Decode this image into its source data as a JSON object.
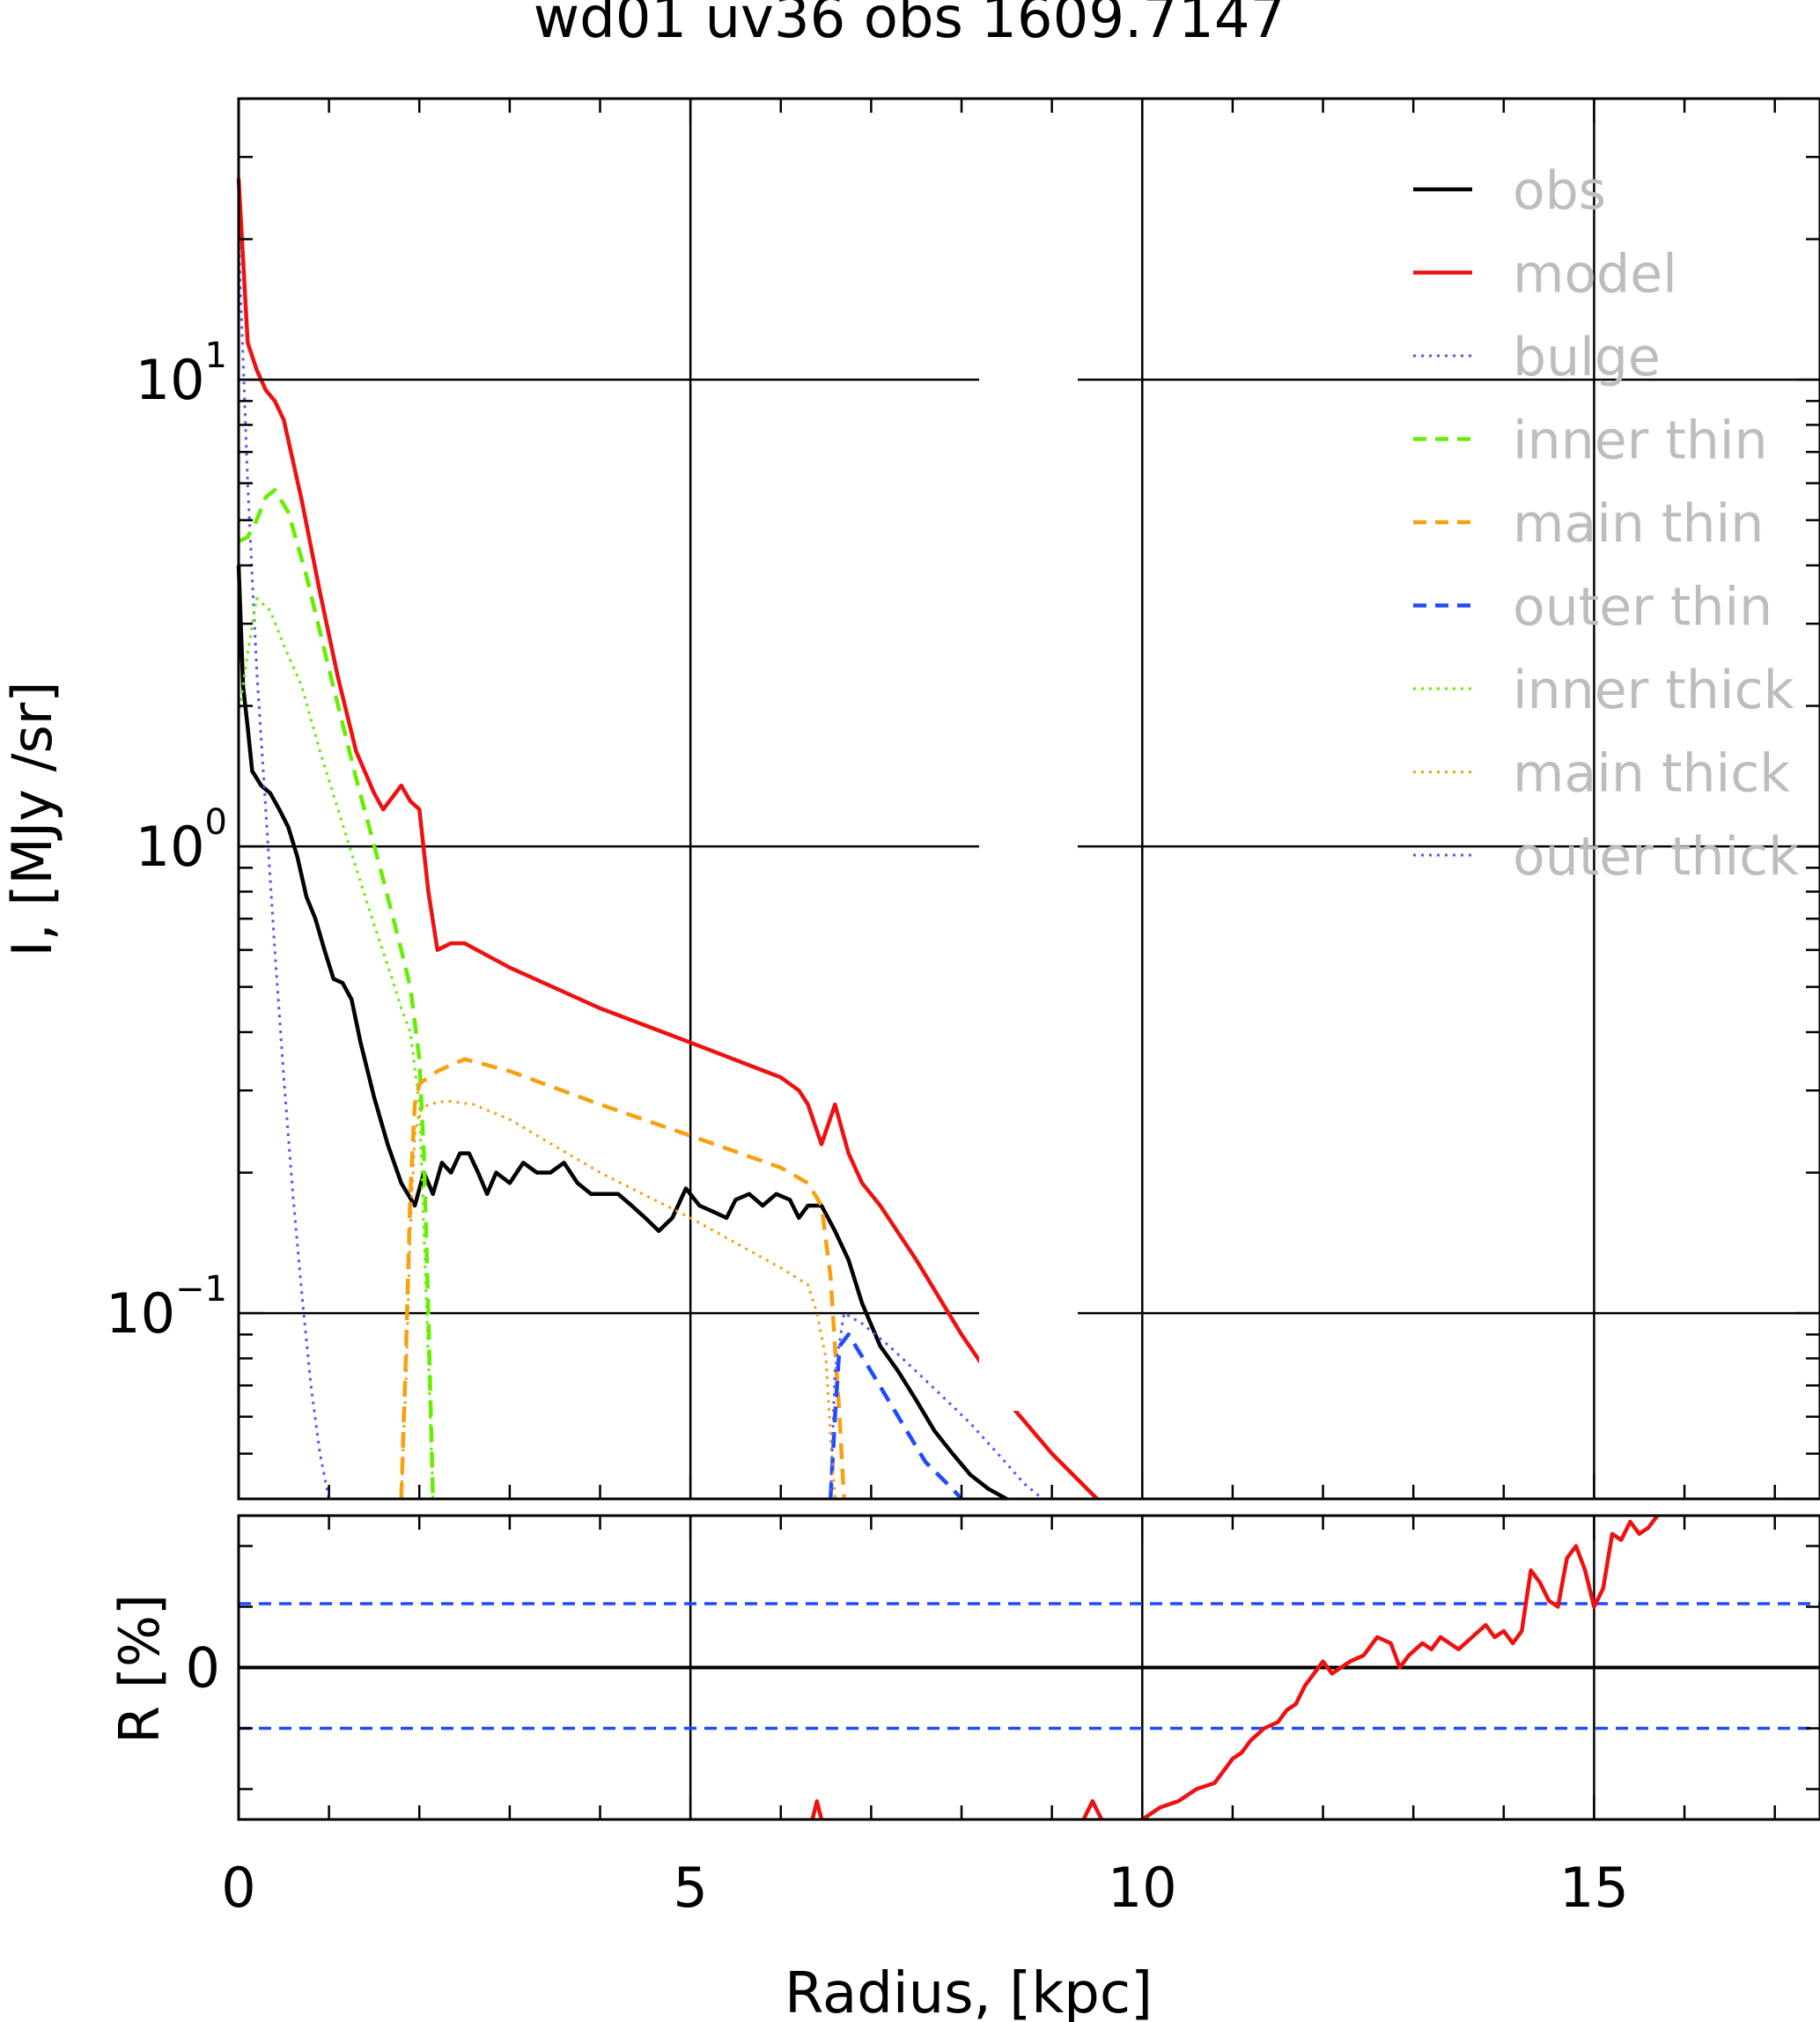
{
  "chart_data": {
    "type": "line",
    "title": "wd01 uv36 obs 1609.7147",
    "xlabel": "Radius, [kpc]",
    "xlim": [
      0,
      17.5
    ],
    "x_ticks": [
      0,
      5,
      10,
      15
    ],
    "x_tick_labels": [
      "0",
      "5",
      "10",
      "15"
    ],
    "top_panel": {
      "ylabel": "I, [MJy /sr]",
      "yscale": "log",
      "ylim": [
        0.04,
        40
      ],
      "y_tick_labels": [
        {
          "value": 10,
          "base": "10",
          "exp": "1"
        },
        {
          "value": 1,
          "base": "10",
          "exp": "0"
        },
        {
          "value": 0.1,
          "base": "10",
          "exp": "−1"
        }
      ],
      "grid": true,
      "legend_position": "top-right",
      "series": [
        {
          "name": "obs",
          "color": "#000000",
          "dash": "solid",
          "x": [
            0,
            0.05,
            0.1,
            0.15,
            0.25,
            0.35,
            0.45,
            0.55,
            0.65,
            0.75,
            0.85,
            0.95,
            1.05,
            1.15,
            1.25,
            1.35,
            1.5,
            1.65,
            1.8,
            1.95,
            2.05,
            2.15,
            2.25,
            2.35,
            2.45,
            2.55,
            2.65,
            2.75,
            2.85,
            3.0,
            3.15,
            3.3,
            3.45,
            3.6,
            3.75,
            3.9,
            4.05,
            4.2,
            4.35,
            4.5,
            4.65,
            4.8,
            4.95,
            5.1,
            5.25,
            5.4,
            5.5,
            5.65,
            5.8,
            5.95,
            6.1,
            6.2,
            6.3,
            6.45,
            6.6,
            6.75,
            6.9,
            7.1,
            7.3,
            7.5,
            7.7,
            7.9,
            8.1,
            8.3,
            8.5
          ],
          "y": [
            4.0,
            2.2,
            1.8,
            1.45,
            1.35,
            1.3,
            1.2,
            1.1,
            0.95,
            0.78,
            0.7,
            0.6,
            0.52,
            0.51,
            0.47,
            0.38,
            0.29,
            0.23,
            0.19,
            0.17,
            0.2,
            0.18,
            0.21,
            0.2,
            0.22,
            0.22,
            0.2,
            0.18,
            0.2,
            0.19,
            0.21,
            0.2,
            0.2,
            0.21,
            0.19,
            0.18,
            0.18,
            0.18,
            0.17,
            0.16,
            0.15,
            0.16,
            0.185,
            0.17,
            0.165,
            0.16,
            0.175,
            0.18,
            0.17,
            0.18,
            0.175,
            0.16,
            0.17,
            0.17,
            0.15,
            0.13,
            0.105,
            0.085,
            0.075,
            0.065,
            0.056,
            0.05,
            0.045,
            0.042,
            0.04
          ]
        },
        {
          "name": "model",
          "color": "#ee1111",
          "dash": "solid",
          "x": [
            0,
            0.1,
            0.2,
            0.3,
            0.4,
            0.5,
            0.7,
            0.9,
            1.1,
            1.3,
            1.5,
            1.6,
            1.8,
            1.9,
            2.0,
            2.1,
            2.2,
            2.35,
            2.5,
            3.0,
            4.0,
            5.0,
            6.0,
            6.2,
            6.3,
            6.45,
            6.6,
            6.75,
            6.9,
            7.1,
            7.5,
            8.0,
            8.5,
            9.0,
            9.5
          ],
          "y": [
            27,
            12,
            10.5,
            9.5,
            9.0,
            8.2,
            5.5,
            3.5,
            2.3,
            1.6,
            1.3,
            1.2,
            1.35,
            1.25,
            1.2,
            0.8,
            0.6,
            0.62,
            0.62,
            0.55,
            0.45,
            0.38,
            0.32,
            0.3,
            0.28,
            0.23,
            0.28,
            0.22,
            0.19,
            0.17,
            0.13,
            0.09,
            0.065,
            0.05,
            0.04
          ]
        },
        {
          "name": "bulge",
          "color": "#5555ff",
          "dash": "dotted",
          "x": [
            0,
            0.1,
            0.2,
            0.3,
            0.4,
            0.5,
            0.6,
            0.7,
            0.8,
            0.9,
            1.0
          ],
          "y": [
            20,
            6,
            2.4,
            1.2,
            0.6,
            0.32,
            0.18,
            0.11,
            0.07,
            0.05,
            0.04
          ]
        },
        {
          "name": "inner thin",
          "color": "#66ee00",
          "dash": "dashed",
          "x": [
            0,
            0.1,
            0.2,
            0.3,
            0.4,
            0.55,
            0.75,
            1.0,
            1.3,
            1.6,
            1.8,
            1.9,
            2.0,
            2.05,
            2.1,
            2.15
          ],
          "y": [
            4.5,
            4.6,
            5.0,
            5.6,
            5.8,
            5.2,
            3.8,
            2.4,
            1.4,
            0.85,
            0.6,
            0.5,
            0.35,
            0.22,
            0.1,
            0.04
          ]
        },
        {
          "name": "main thin",
          "color": "#f7a010",
          "dash": "dashed",
          "x": [
            1.8,
            1.85,
            1.9,
            1.95,
            2.0,
            2.2,
            2.5,
            3.0,
            4.0,
            5.0,
            6.0,
            6.3,
            6.45,
            6.55,
            6.65,
            6.7
          ],
          "y": [
            0.04,
            0.08,
            0.18,
            0.28,
            0.31,
            0.33,
            0.35,
            0.33,
            0.28,
            0.24,
            0.205,
            0.19,
            0.17,
            0.12,
            0.06,
            0.04
          ]
        },
        {
          "name": "outer thin",
          "color": "#1e4bff",
          "dash": "dashed",
          "x": [
            6.55,
            6.6,
            6.65,
            6.75,
            7.0,
            7.3,
            7.6,
            7.9,
            8.0
          ],
          "y": [
            0.04,
            0.06,
            0.085,
            0.09,
            0.075,
            0.06,
            0.048,
            0.042,
            0.04
          ]
        },
        {
          "name": "inner thick",
          "color": "#66ee00",
          "dash": "dotted",
          "x": [
            0,
            0.1,
            0.2,
            0.35,
            0.5,
            0.7,
            0.9,
            1.1,
            1.3,
            1.5,
            1.7,
            1.8,
            1.9,
            2.0,
            2.05,
            2.1,
            2.15
          ],
          "y": [
            1.9,
            2.6,
            3.4,
            3.2,
            2.7,
            2.2,
            1.6,
            1.2,
            0.9,
            0.68,
            0.52,
            0.45,
            0.4,
            0.28,
            0.15,
            0.08,
            0.04
          ]
        },
        {
          "name": "main thick",
          "color": "#f7a010",
          "dash": "dotted",
          "x": [
            1.8,
            1.85,
            1.9,
            1.95,
            2.0,
            2.1,
            2.3,
            2.6,
            3.0,
            4.0,
            5.0,
            6.0,
            6.3,
            6.4,
            6.5,
            6.55,
            6.6
          ],
          "y": [
            0.04,
            0.07,
            0.15,
            0.24,
            0.27,
            0.28,
            0.285,
            0.28,
            0.26,
            0.2,
            0.16,
            0.125,
            0.115,
            0.1,
            0.08,
            0.055,
            0.04
          ]
        },
        {
          "name": "outer thick",
          "color": "#5555ff",
          "dash": "dotted",
          "x": [
            6.55,
            6.6,
            6.7,
            6.9,
            7.2,
            7.5,
            7.8,
            8.1,
            8.4,
            8.7,
            8.9
          ],
          "y": [
            0.04,
            0.075,
            0.1,
            0.095,
            0.085,
            0.075,
            0.066,
            0.058,
            0.05,
            0.043,
            0.04
          ]
        }
      ]
    },
    "bottom_panel": {
      "ylabel": "R [%]",
      "ylim": [
        -25,
        25
      ],
      "y_tick_labels": [
        {
          "value": 0,
          "label": "0"
        }
      ],
      "hlines": [
        {
          "y": 0,
          "color": "#000000",
          "dash": "solid"
        },
        {
          "y": 10.5,
          "color": "#1e4bff",
          "dash": "dashed"
        },
        {
          "y": -10,
          "color": "#1e4bff",
          "dash": "dashed"
        }
      ],
      "series": [
        {
          "name": "",
          "color": "#ee1111",
          "dash": "solid",
          "x": [
            6.35,
            6.4,
            6.45,
            null,
            9.35,
            9.45,
            9.55,
            null,
            10.0,
            10.2,
            10.4,
            10.6,
            10.8,
            10.9,
            11.0,
            11.1,
            11.2,
            11.35,
            11.5,
            11.6,
            11.7,
            11.8,
            11.95,
            12.0,
            12.1,
            12.2,
            12.3,
            12.45,
            12.6,
            12.75,
            12.85,
            12.95,
            13.1,
            13.2,
            13.3,
            13.4,
            13.5,
            13.65,
            13.8,
            13.9,
            14.0,
            14.1,
            14.2,
            14.3,
            14.4,
            14.5,
            14.6,
            14.7,
            14.8,
            14.9,
            15.0,
            15.1,
            15.2,
            15.3,
            15.4,
            15.5,
            15.6,
            15.7,
            15.8,
            15.9
          ],
          "y": [
            -25,
            -22,
            -25,
            null,
            -25,
            -22,
            -25,
            null,
            -25,
            -23,
            -22,
            -20,
            -19,
            -17,
            -15,
            -14,
            -12,
            -10,
            -9,
            -7,
            -6,
            -3,
            0,
            1,
            -1,
            0,
            1,
            2,
            5,
            4,
            0,
            2,
            4,
            3,
            5,
            4,
            3,
            5,
            7,
            5,
            6,
            4,
            6,
            16,
            14,
            11,
            10,
            18,
            20,
            16,
            10,
            13,
            22,
            21,
            24,
            22,
            23,
            25,
            28,
            30
          ]
        }
      ]
    }
  }
}
